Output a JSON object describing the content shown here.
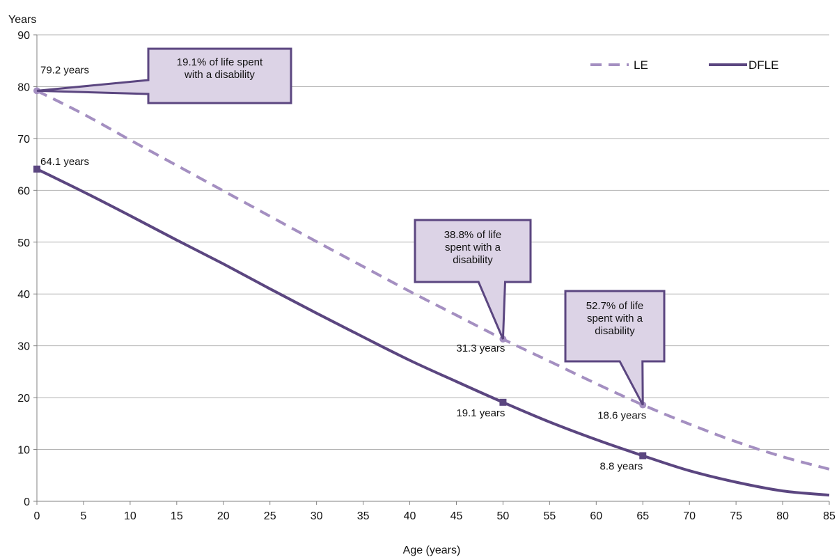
{
  "chart_data": {
    "type": "line",
    "ylabel": "Years",
    "xlabel": "Age (years)",
    "xlim": [
      0,
      85
    ],
    "ylim": [
      0,
      90
    ],
    "x_ticks": [
      0,
      5,
      10,
      15,
      20,
      25,
      30,
      35,
      40,
      45,
      50,
      55,
      60,
      65,
      70,
      75,
      80,
      85
    ],
    "y_ticks": [
      0,
      10,
      20,
      30,
      40,
      50,
      60,
      70,
      80,
      90
    ],
    "grid": "horizontal",
    "legend_position": "top-right",
    "colors": {
      "LE": "#a48fc1",
      "DFLE": "#5b4680",
      "callout_fill": "#dcd3e6",
      "gridline": "#b3b3b3"
    },
    "series": [
      {
        "name": "LE",
        "style": "dashed",
        "x": [
          0,
          5,
          10,
          15,
          20,
          25,
          30,
          35,
          40,
          45,
          50,
          55,
          60,
          65,
          70,
          75,
          80,
          85
        ],
        "values": [
          79.2,
          74.7,
          69.7,
          64.8,
          59.9,
          55.0,
          50.1,
          45.3,
          40.5,
          35.9,
          31.3,
          27.0,
          22.7,
          18.6,
          14.9,
          11.5,
          8.6,
          6.2
        ]
      },
      {
        "name": "DFLE",
        "style": "solid",
        "x": [
          0,
          5,
          10,
          15,
          20,
          25,
          30,
          35,
          40,
          45,
          50,
          55,
          60,
          65,
          70,
          75,
          80,
          85
        ],
        "values": [
          64.1,
          59.7,
          55.1,
          50.4,
          45.8,
          41.0,
          36.3,
          31.7,
          27.2,
          23.1,
          19.1,
          15.3,
          11.9,
          8.8,
          5.9,
          3.7,
          2.0,
          1.2
        ]
      }
    ],
    "data_labels": [
      {
        "series": "LE",
        "x": 0,
        "text": "79.2 years"
      },
      {
        "series": "DFLE",
        "x": 0,
        "text": "64.1 years"
      },
      {
        "series": "LE",
        "x": 50,
        "text": "31.3 years"
      },
      {
        "series": "DFLE",
        "x": 50,
        "text": "19.1 years"
      },
      {
        "series": "LE",
        "x": 65,
        "text": "18.6 years"
      },
      {
        "series": "DFLE",
        "x": 65,
        "text": "8.8 years"
      }
    ],
    "annotations": [
      {
        "x": 0,
        "lines": [
          "19.1% of life spent",
          "with a disability"
        ]
      },
      {
        "x": 50,
        "lines": [
          "38.8% of life",
          "spent with a",
          "disability"
        ]
      },
      {
        "x": 65,
        "lines": [
          "52.7% of life",
          "spent with a",
          "disability"
        ]
      }
    ]
  }
}
